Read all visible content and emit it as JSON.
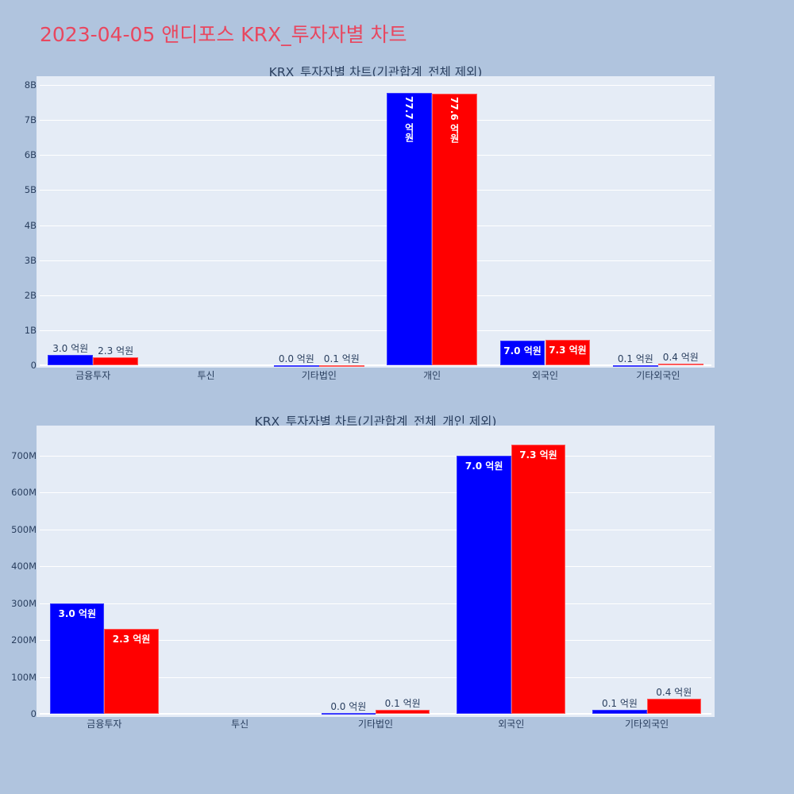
{
  "page": {
    "title": "2023-04-05 앤디포스 KRX_투자자별 차트",
    "title_color": "#e8475f",
    "background": "#b0c4de"
  },
  "colors": {
    "series_1": "#0000ff",
    "series_2": "#ff0000",
    "plot_bg": "#e5ecf6",
    "grid": "#ffffff",
    "tick_text": "#2a3f5f"
  },
  "chart_data": [
    {
      "type": "bar",
      "title": "KRX_투자자별 차트(기관합계_전체 제외)",
      "categories": [
        "금융투자",
        "투신",
        "기타법인",
        "개인",
        "외국인",
        "기타외국인"
      ],
      "series": [
        {
          "name": "series_blue",
          "color": "#0000ff",
          "values": [
            300000000,
            0,
            2000000,
            7770000000,
            700000000,
            10000000
          ],
          "labels": [
            "3.0 억원",
            "",
            "0.0 억원",
            "77.7 억원",
            "7.0 억원",
            "0.1 억원"
          ]
        },
        {
          "name": "series_red",
          "color": "#ff0000",
          "values": [
            230000000,
            0,
            10000000,
            7760000000,
            730000000,
            40000000
          ],
          "labels": [
            "2.3 억원",
            "",
            "0.1 억원",
            "77.6 억원",
            "7.3 억원",
            "0.4 억원"
          ]
        }
      ],
      "yticks": [
        "0",
        "1B",
        "2B",
        "3B",
        "4B",
        "5B",
        "6B",
        "7B",
        "8B"
      ],
      "ylim": [
        0,
        8250000000
      ],
      "xlabel": "",
      "ylabel": "",
      "grid": true,
      "legend": false
    },
    {
      "type": "bar",
      "title": "KRX_투자자별 차트(기관합계_전체_개인 제외)",
      "categories": [
        "금융투자",
        "투신",
        "기타법인",
        "외국인",
        "기타외국인"
      ],
      "series": [
        {
          "name": "series_blue",
          "color": "#0000ff",
          "values": [
            300000000,
            0,
            2000000,
            700000000,
            10000000
          ],
          "labels": [
            "3.0 억원",
            "",
            "0.0 억원",
            "7.0 억원",
            "0.1 억원"
          ]
        },
        {
          "name": "series_red",
          "color": "#ff0000",
          "values": [
            230000000,
            0,
            10000000,
            730000000,
            40000000
          ],
          "labels": [
            "2.3 억원",
            "",
            "0.1 억원",
            "7.3 억원",
            "0.4 억원"
          ]
        }
      ],
      "yticks": [
        "0",
        "100M",
        "200M",
        "300M",
        "400M",
        "500M",
        "600M",
        "700M"
      ],
      "ylim": [
        0,
        780000000
      ],
      "xlabel": "",
      "ylabel": "",
      "grid": true,
      "legend": false
    }
  ]
}
